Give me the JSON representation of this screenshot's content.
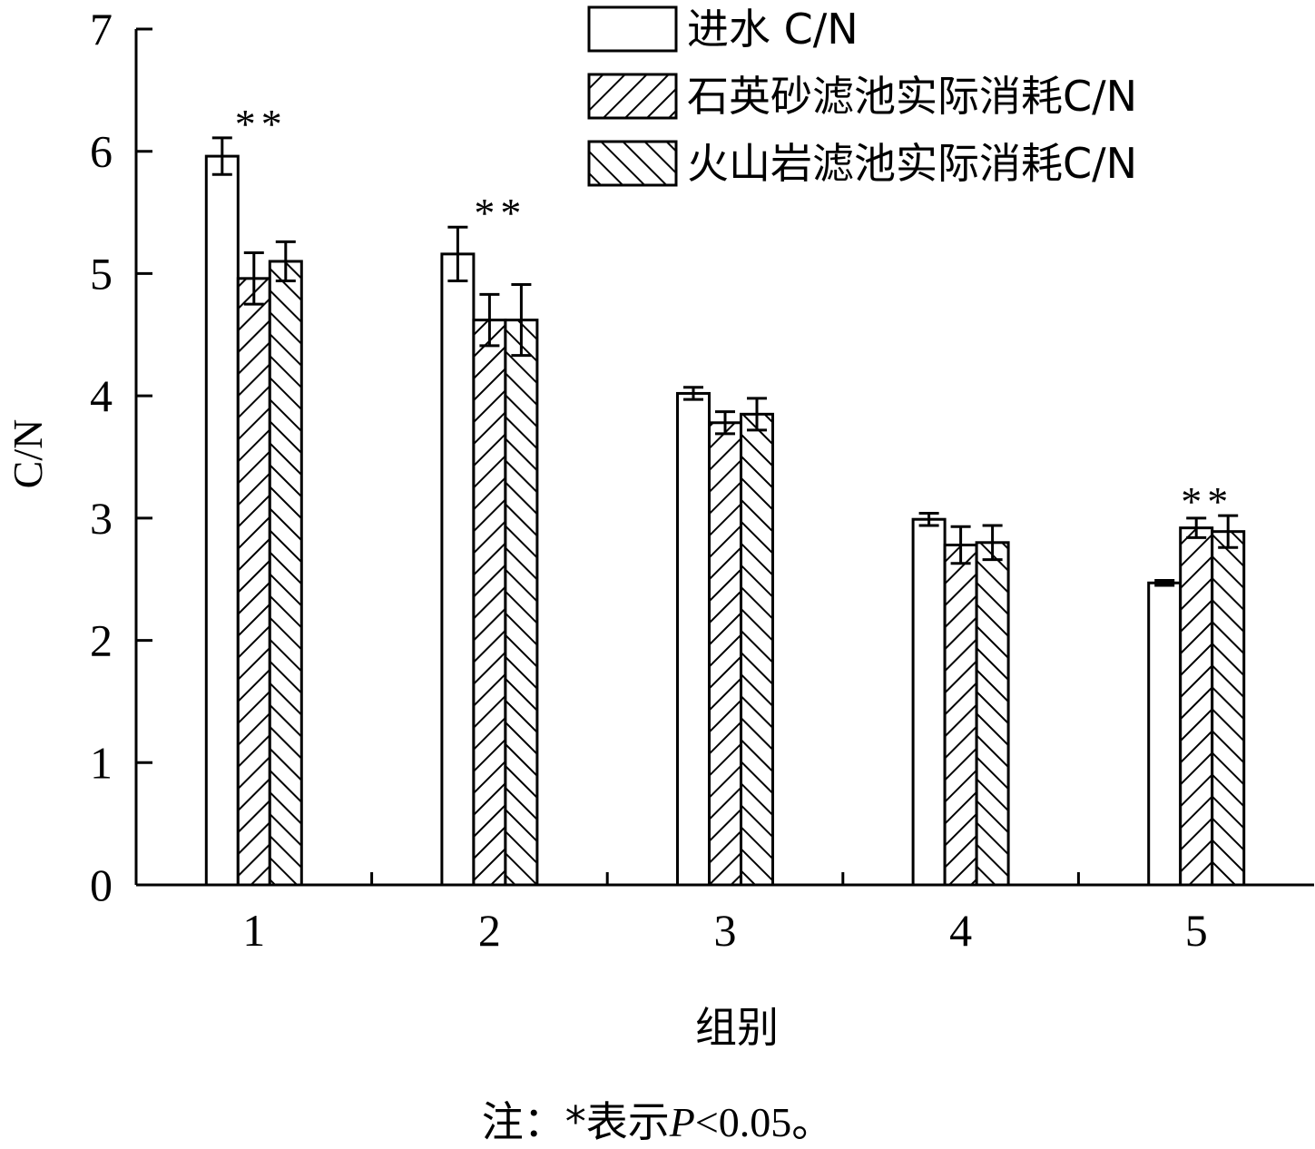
{
  "chart_data": {
    "type": "bar",
    "xlabel": "组别",
    "ylabel": "C/N",
    "ylim": [
      0,
      7
    ],
    "yticks": [
      "0",
      "1",
      "2",
      "3",
      "4",
      "5",
      "6",
      "7"
    ],
    "categories": [
      "1",
      "2",
      "3",
      "4",
      "5"
    ],
    "series": [
      {
        "name": "进水 C/N",
        "pattern": "none",
        "values": [
          5.96,
          5.16,
          4.02,
          2.99,
          2.47
        ],
        "errors": [
          0.15,
          0.22,
          0.05,
          0.05,
          0.02
        ]
      },
      {
        "name": "石英砂滤池实际消耗C/N",
        "pattern": "forward-hatch",
        "values": [
          4.96,
          4.62,
          3.78,
          2.78,
          2.92
        ],
        "errors": [
          0.21,
          0.21,
          0.09,
          0.15,
          0.08
        ]
      },
      {
        "name": "火山岩滤池实际消耗C/N",
        "pattern": "back-hatch",
        "values": [
          5.1,
          4.62,
          3.85,
          2.8,
          2.89
        ],
        "errors": [
          0.16,
          0.29,
          0.13,
          0.14,
          0.13
        ]
      }
    ],
    "annotations": [
      {
        "category": "1",
        "text": "**"
      },
      {
        "category": "2",
        "text": "**"
      },
      {
        "category": "5",
        "text": "**"
      }
    ],
    "legend_position": "top-right",
    "grid": false,
    "colors": {
      "bar_fill": "#ffffff",
      "stroke": "#000000"
    }
  },
  "note": {
    "prefix": "注：*表示",
    "p_symbol": "P",
    "suffix": "<0.05。"
  }
}
